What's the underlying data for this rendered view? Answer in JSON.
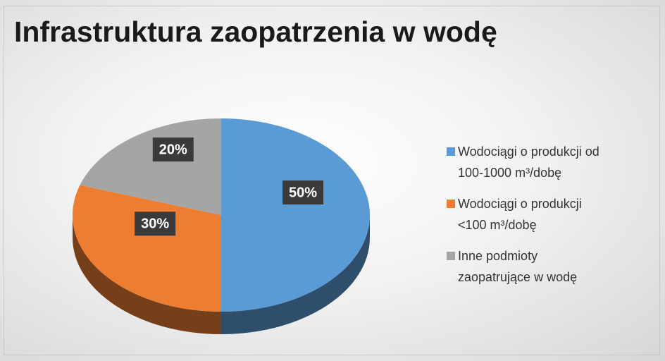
{
  "chart_data": {
    "type": "pie",
    "title": "Infrastruktura zaopatrzenia w wodę",
    "categories": [
      "Wodociągi o produkcji od 100-1000 m³/dobę",
      "Wodociągi o produkcji <100 m³/dobę",
      "Inne podmioty zaopatrujące w wodę"
    ],
    "values": [
      50,
      30,
      20
    ],
    "value_labels": [
      "50%",
      "30%",
      "20%"
    ],
    "colors": [
      "#5b9bd5",
      "#ed7d31",
      "#a5a5a5"
    ],
    "legend": "right"
  }
}
